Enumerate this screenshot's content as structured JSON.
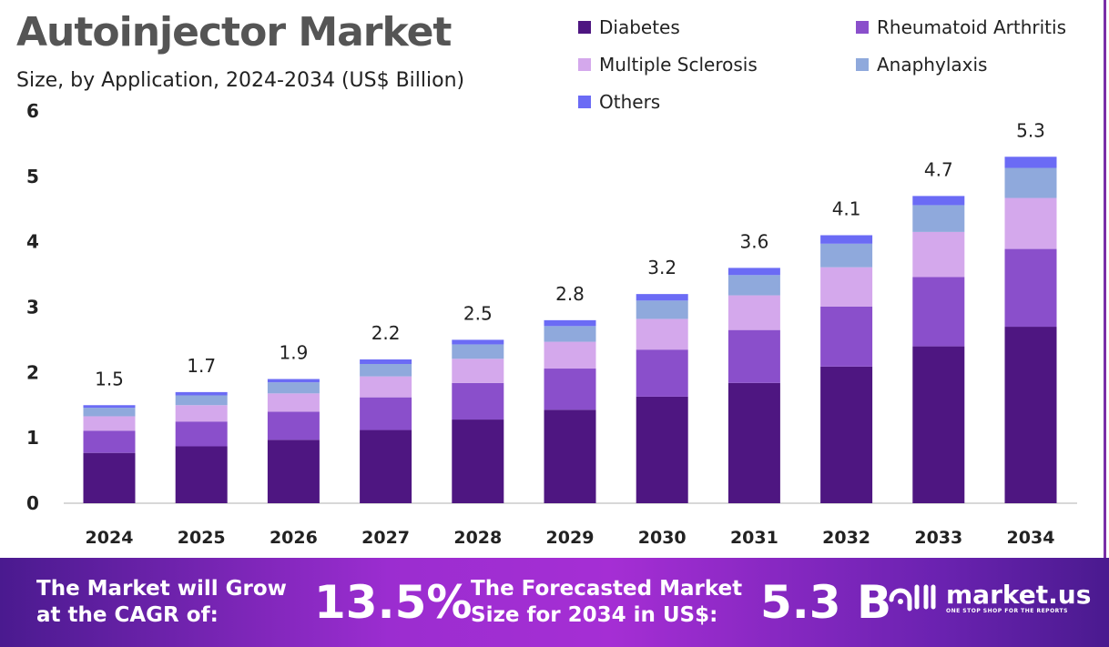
{
  "header": {
    "title": "Autoinjector Market",
    "subtitle": "Size, by Application, 2024-2034 (US$ Billion)"
  },
  "chart_data": {
    "type": "bar",
    "stacked": true,
    "categories": [
      "2024",
      "2025",
      "2026",
      "2027",
      "2028",
      "2029",
      "2030",
      "2031",
      "2032",
      "2033",
      "2034"
    ],
    "series": [
      {
        "name": "Diabetes",
        "color": "#4e1681",
        "values": [
          0.77,
          0.87,
          0.97,
          1.12,
          1.28,
          1.43,
          1.63,
          1.84,
          2.09,
          2.4,
          2.7
        ]
      },
      {
        "name": "Rheumatoid Arthritis",
        "color": "#8a4fcb",
        "values": [
          0.34,
          0.38,
          0.43,
          0.5,
          0.56,
          0.63,
          0.72,
          0.81,
          0.92,
          1.06,
          1.19
        ]
      },
      {
        "name": "Multiple Sclerosis",
        "color": "#d4a8ec",
        "values": [
          0.22,
          0.25,
          0.28,
          0.32,
          0.37,
          0.41,
          0.47,
          0.53,
          0.6,
          0.69,
          0.78
        ]
      },
      {
        "name": "Anaphylaxis",
        "color": "#8fa9dc",
        "values": [
          0.13,
          0.15,
          0.17,
          0.19,
          0.22,
          0.24,
          0.28,
          0.31,
          0.36,
          0.41,
          0.46
        ]
      },
      {
        "name": "Others",
        "color": "#6b6bf5",
        "values": [
          0.04,
          0.05,
          0.05,
          0.07,
          0.07,
          0.09,
          0.1,
          0.11,
          0.13,
          0.14,
          0.17
        ]
      }
    ],
    "totals": [
      "1.5",
      "1.7",
      "1.9",
      "2.2",
      "2.5",
      "2.8",
      "3.2",
      "3.6",
      "4.1",
      "4.7",
      "5.3"
    ],
    "yticks": [
      "0",
      "1",
      "2",
      "3",
      "4",
      "5",
      "6"
    ],
    "ylim": [
      0,
      6
    ],
    "grid": false,
    "legend": "top-right"
  },
  "footer": {
    "cagr_label": "The Market will Grow at the CAGR of:",
    "cagr_value": "13.5%",
    "forecast_label": "The Forecasted Market Size for 2034 in US$:",
    "forecast_value": "5.3 B",
    "brand": "market.us",
    "tagline": "ONE STOP SHOP FOR THE REPORTS"
  }
}
